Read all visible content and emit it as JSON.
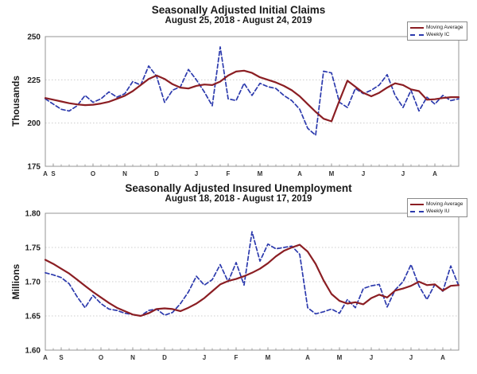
{
  "page": {
    "background": "#ffffff"
  },
  "colors": {
    "moving_average": "#8b1e23",
    "weekly": "#2c3aad",
    "grid": "#cccccc",
    "axis": "#949494",
    "tick_text": "#222222",
    "title_text": "#1a1a1a"
  },
  "chart_data": [
    {
      "type": "line",
      "title": "Seasonally Adjusted Initial Claims",
      "subtitle": "August 25, 2018 - August 24, 2019",
      "ylabel": "Thousands",
      "ylim": [
        175,
        250
      ],
      "grid": true,
      "legend_position": "top-right",
      "weeks": 53,
      "y_ticks": [
        {
          "value": 250,
          "label": "250"
        },
        {
          "value": 225,
          "label": "225"
        },
        {
          "value": 200,
          "label": "200"
        },
        {
          "value": 175,
          "label": "175"
        }
      ],
      "x_ticks": [
        {
          "week": 0,
          "label": "A"
        },
        {
          "week": 1,
          "label": "S"
        },
        {
          "week": 6,
          "label": "O"
        },
        {
          "week": 10,
          "label": "N"
        },
        {
          "week": 14,
          "label": "D"
        },
        {
          "week": 19,
          "label": "J"
        },
        {
          "week": 23,
          "label": "F"
        },
        {
          "week": 27,
          "label": "M"
        },
        {
          "week": 32,
          "label": "A"
        },
        {
          "week": 36,
          "label": "M"
        },
        {
          "week": 40,
          "label": "J"
        },
        {
          "week": 45,
          "label": "J"
        },
        {
          "week": 49,
          "label": "A"
        }
      ],
      "series": [
        {
          "name": "Moving Average",
          "style": "solid",
          "color_key": "moving_average",
          "values": [
            214.5,
            213.5,
            212.5,
            211.5,
            210.8,
            210.4,
            210.6,
            211.3,
            212.3,
            214.0,
            215.8,
            218.5,
            222.0,
            225.5,
            227.5,
            225.5,
            222.5,
            220.5,
            220.0,
            221.5,
            222.3,
            222.0,
            224.0,
            227.5,
            229.8,
            230.3,
            229.0,
            226.5,
            225.0,
            223.5,
            221.5,
            219.0,
            215.5,
            211.0,
            206.5,
            202.5,
            201.0,
            213.0,
            224.5,
            221.0,
            217.5,
            215.5,
            217.5,
            220.5,
            223.0,
            222.0,
            219.5,
            218.5,
            213.5,
            213.8,
            214.5,
            215.0,
            215.0
          ]
        },
        {
          "name": "Weekly IC",
          "style": "dashed",
          "color_key": "weekly",
          "values": [
            214,
            211,
            208,
            207,
            210,
            216,
            212,
            214,
            218,
            215,
            217,
            224,
            222,
            233,
            227,
            212,
            219,
            221,
            231,
            225,
            218,
            210,
            244,
            214,
            213,
            223,
            216,
            223,
            221,
            220,
            216,
            213,
            208,
            197,
            193,
            230,
            229,
            212,
            209,
            220,
            217,
            219,
            222,
            228,
            216,
            209,
            219,
            207,
            215,
            211,
            216,
            213,
            214
          ]
        }
      ]
    },
    {
      "type": "line",
      "title": "Seasonally Adjusted Insured Unemployment",
      "subtitle": "August 18, 2018 - August 17, 2019",
      "ylabel": "Millions",
      "ylim": [
        1.6,
        1.8
      ],
      "grid": true,
      "legend_position": "top-right",
      "weeks": 53,
      "y_ticks": [
        {
          "value": 1.8,
          "label": "1.80"
        },
        {
          "value": 1.75,
          "label": "1.75"
        },
        {
          "value": 1.7,
          "label": "1.70"
        },
        {
          "value": 1.65,
          "label": "1.65"
        },
        {
          "value": 1.6,
          "label": "1.60"
        }
      ],
      "x_ticks": [
        {
          "week": 0,
          "label": "A"
        },
        {
          "week": 2,
          "label": "S"
        },
        {
          "week": 7,
          "label": "O"
        },
        {
          "week": 11,
          "label": "N"
        },
        {
          "week": 15,
          "label": "D"
        },
        {
          "week": 20,
          "label": "J"
        },
        {
          "week": 24,
          "label": "F"
        },
        {
          "week": 28,
          "label": "M"
        },
        {
          "week": 33,
          "label": "A"
        },
        {
          "week": 37,
          "label": "M"
        },
        {
          "week": 41,
          "label": "J"
        },
        {
          "week": 46,
          "label": "J"
        },
        {
          "week": 50,
          "label": "A"
        }
      ],
      "series": [
        {
          "name": "Moving Average",
          "style": "solid",
          "color_key": "moving_average",
          "values": [
            1.732,
            1.726,
            1.719,
            1.712,
            1.703,
            1.694,
            1.685,
            1.677,
            1.669,
            1.662,
            1.657,
            1.652,
            1.65,
            1.654,
            1.66,
            1.661,
            1.66,
            1.657,
            1.662,
            1.668,
            1.676,
            1.686,
            1.696,
            1.701,
            1.704,
            1.708,
            1.713,
            1.719,
            1.727,
            1.737,
            1.745,
            1.75,
            1.754,
            1.744,
            1.726,
            1.702,
            1.682,
            1.672,
            1.668,
            1.67,
            1.667,
            1.676,
            1.681,
            1.677,
            1.687,
            1.69,
            1.694,
            1.7,
            1.695,
            1.696,
            1.687,
            1.694,
            1.695
          ]
        },
        {
          "name": "Weekly IU",
          "style": "dashed",
          "color_key": "weekly",
          "values": [
            1.713,
            1.71,
            1.706,
            1.697,
            1.678,
            1.662,
            1.68,
            1.668,
            1.66,
            1.658,
            1.654,
            1.652,
            1.65,
            1.658,
            1.66,
            1.651,
            1.655,
            1.668,
            1.685,
            1.708,
            1.695,
            1.703,
            1.725,
            1.7,
            1.728,
            1.695,
            1.773,
            1.73,
            1.755,
            1.748,
            1.75,
            1.752,
            1.74,
            1.662,
            1.653,
            1.656,
            1.66,
            1.654,
            1.674,
            1.662,
            1.69,
            1.694,
            1.696,
            1.663,
            1.688,
            1.7,
            1.725,
            1.694,
            1.674,
            1.696,
            1.686,
            1.723,
            1.694
          ]
        }
      ]
    }
  ]
}
